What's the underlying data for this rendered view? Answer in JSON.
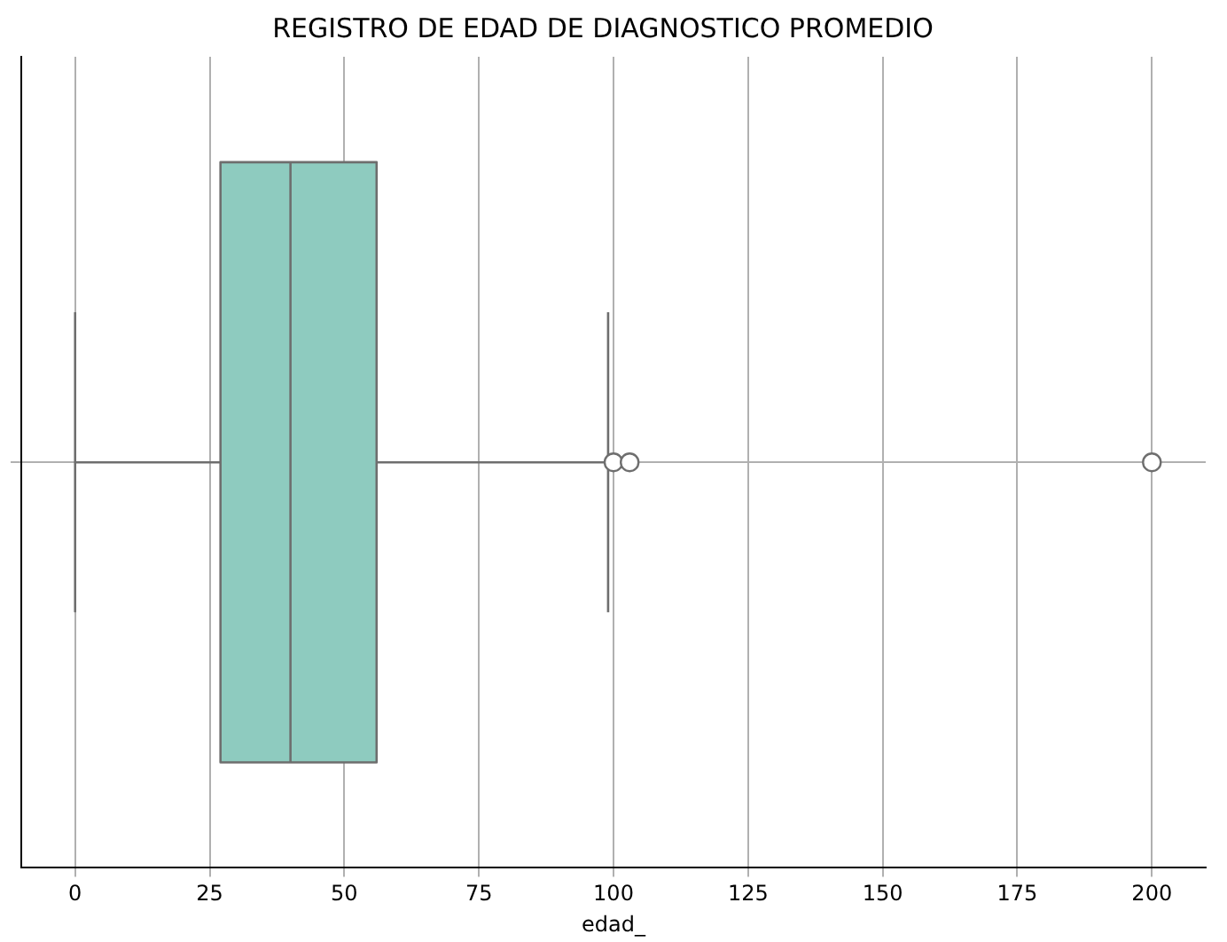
{
  "chart_data": {
    "type": "box",
    "title": "REGISTRO DE EDAD DE DIAGNOSTICO PROMEDIO",
    "xlabel": "edad_",
    "orientation": "horizontal",
    "categories": [
      null
    ],
    "boxes": [
      {
        "low": 0,
        "q1": 27,
        "median": 40,
        "q3": 56,
        "high": 99,
        "outliers": [
          100,
          103,
          200
        ]
      }
    ],
    "color": "#8ecbbf",
    "xlim": [
      -10,
      210
    ],
    "xticks": [
      0,
      25,
      50,
      75,
      100,
      125,
      150,
      175,
      200
    ],
    "grid": true
  }
}
